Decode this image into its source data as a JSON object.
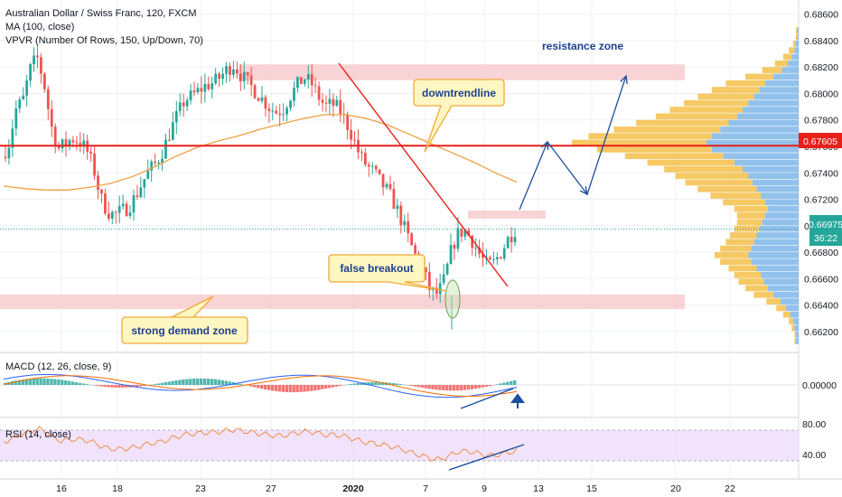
{
  "header": {
    "title": "Australian Dollar / Swiss Franc, 120, FXCM",
    "ma_label": "MA (100, close)",
    "vpvr_label": "VPVR (Number Of Rows, 150, Up/Down, 70)"
  },
  "annotations": {
    "resistance": "resistance zone",
    "downtrend": "downtrendline",
    "false_breakout": "false breakout",
    "demand": "strong demand zone"
  },
  "price_badges": {
    "level": "0.67605",
    "last": "0.66975",
    "countdown": "36:22"
  },
  "macd": {
    "label": "MACD (12, 26, close, 9)",
    "tick": "0.00000"
  },
  "rsi": {
    "label": "RSI (14, close)",
    "ticks": [
      "80.00",
      "40.00"
    ]
  },
  "colors": {
    "up": "#26a69a",
    "down": "#ef5350",
    "ma": "#f0a040",
    "level": "#e8201a",
    "zone": "#f7c5c8",
    "arrow": "#1e4f9c",
    "callout_fill": "#fff7c2",
    "callout_border": "#f2a93b",
    "vol_up": "#7fb6e8",
    "vol_down": "#f5c04a",
    "rsi_band": "#efe0fb",
    "badge_last": "#26a69a",
    "badge_level": "#e8201a"
  },
  "chart_data": {
    "type": "candlestick",
    "symbol": "AUDCHF",
    "timeframe": "120",
    "x_ticks": [
      "16",
      "18",
      "23",
      "27",
      "2020",
      "7",
      "9",
      "13",
      "15",
      "20",
      "22"
    ],
    "price_axis_ticks": [
      "0.68600",
      "0.68400",
      "0.68200",
      "0.68000",
      "0.67800",
      "0.67600",
      "0.67400",
      "0.67200",
      "0.67000",
      "0.66800",
      "0.66600",
      "0.66400",
      "0.66200"
    ],
    "ylim": [
      0.6611,
      0.6868
    ],
    "close_path": [
      0.6752,
      0.6762,
      0.6788,
      0.6795,
      0.6818,
      0.6828,
      0.6808,
      0.6776,
      0.6758,
      0.6762,
      0.6766,
      0.6764,
      0.6758,
      0.6745,
      0.6722,
      0.6711,
      0.6708,
      0.6711,
      0.6714,
      0.6722,
      0.6733,
      0.6742,
      0.6748,
      0.6758,
      0.6772,
      0.6784,
      0.6795,
      0.6798,
      0.6802,
      0.6806,
      0.6808,
      0.6812,
      0.6818,
      0.6822,
      0.6814,
      0.6808,
      0.6802,
      0.6796,
      0.679,
      0.6786,
      0.6788,
      0.6798,
      0.6806,
      0.6812,
      0.6808,
      0.6798,
      0.679,
      0.6792,
      0.6788,
      0.6778,
      0.6766,
      0.6752,
      0.6745,
      0.674,
      0.6732,
      0.6725,
      0.6715,
      0.6702,
      0.6688,
      0.6675,
      0.6665,
      0.665,
      0.6648,
      0.666,
      0.6683,
      0.6695,
      0.6696,
      0.6688,
      0.6678,
      0.667,
      0.6672,
      0.668,
      0.669,
      0.6697
    ],
    "ma100_path": [
      0.673,
      0.6728,
      0.6727,
      0.6727,
      0.6729,
      0.6732,
      0.6737,
      0.6744,
      0.6752,
      0.6759,
      0.6764,
      0.6768,
      0.6773,
      0.6777,
      0.6781,
      0.6784,
      0.6784,
      0.6781,
      0.6776,
      0.6769,
      0.6762,
      0.6755,
      0.6748,
      0.674,
      0.6733
    ],
    "levels": [
      {
        "price": 0.67605,
        "label": "0.67605"
      }
    ],
    "last_price": 0.66975,
    "zones": [
      {
        "name": "resistance zone",
        "from": 0.681,
        "to": 0.6822
      },
      {
        "name": "strong demand zone",
        "from": 0.6637,
        "to": 0.6648
      }
    ],
    "projection": [
      0.6697,
      0.6759,
      0.672,
      0.6812
    ],
    "volume_profile": {
      "price_from": 0.661,
      "price_to": 0.685,
      "up": [
        2,
        2,
        3,
        4,
        6,
        9,
        13,
        18,
        22,
        25,
        27,
        30,
        34,
        36,
        34,
        32,
        30,
        28,
        26,
        24,
        22,
        24,
        27,
        30,
        33,
        36,
        40,
        46,
        54,
        62,
        66,
        62,
        56,
        50,
        44,
        40,
        36,
        32,
        28,
        24,
        18,
        12,
        8,
        5,
        3,
        2,
        1,
        1
      ],
      "down": [
        1,
        1,
        2,
        3,
        5,
        7,
        10,
        14,
        16,
        18,
        19,
        20,
        22,
        24,
        22,
        20,
        19,
        18,
        18,
        20,
        24,
        30,
        36,
        42,
        48,
        52,
        56,
        62,
        70,
        82,
        96,
        88,
        76,
        66,
        58,
        52,
        46,
        40,
        34,
        28,
        20,
        14,
        9,
        6,
        4,
        2,
        1,
        1
      ]
    },
    "macd": {
      "signal_zero_label": "0.00000"
    },
    "rsi": {
      "upper": 80,
      "lower": 40
    }
  }
}
